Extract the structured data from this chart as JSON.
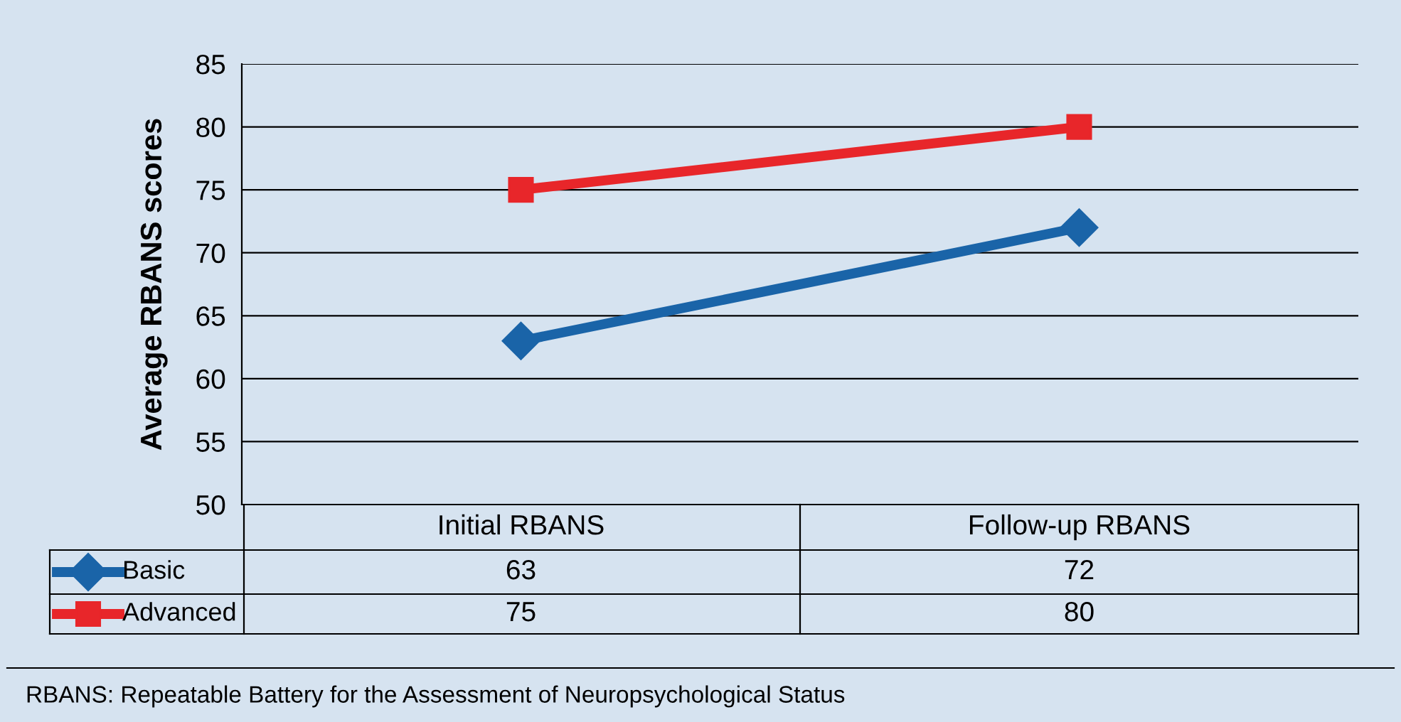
{
  "chart_data": {
    "type": "line",
    "ylabel": "Average RBANS scores",
    "categories": [
      "Initial RBANS",
      "Follow-up RBANS"
    ],
    "series": [
      {
        "name": "Basic",
        "color": "#1a64a8",
        "values": [
          63,
          72
        ],
        "marker": "diamond"
      },
      {
        "name": "Advanced",
        "color": "#e8262a",
        "values": [
          75,
          80
        ],
        "marker": "square"
      }
    ],
    "ylim": [
      50,
      85
    ],
    "yticks": [
      50,
      55,
      60,
      65,
      70,
      75,
      80,
      85
    ],
    "grid": "y",
    "legend": "bottom",
    "data_labels": true,
    "annotations": [
      "RBANS: Repeatable Battery for the Assessment of Neuropsychological Status"
    ]
  }
}
